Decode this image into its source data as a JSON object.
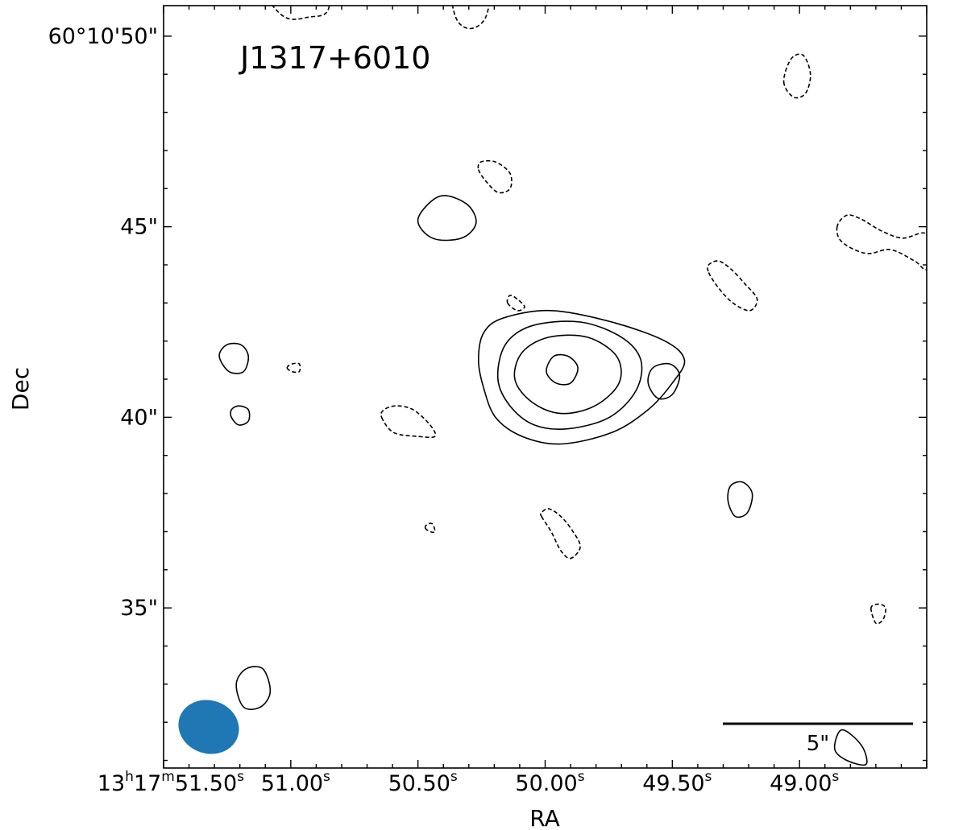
{
  "chart_data": {
    "type": "contour",
    "title": "J1317+6010",
    "xlabel": "RA",
    "ylabel": "Dec",
    "x_ticks": [
      {
        "h": "13",
        "m": "17",
        "s": "51.50",
        "full": true
      },
      {
        "s": "51.00"
      },
      {
        "s": "50.50"
      },
      {
        "s": "50.00"
      },
      {
        "s": "49.50"
      },
      {
        "s": "49.00"
      }
    ],
    "y_ticks": [
      {
        "value": "60°10'50\""
      },
      {
        "value": "45\""
      },
      {
        "value": "40\""
      },
      {
        "value": "35\""
      }
    ],
    "scale_bar_label": "5\"",
    "beam_color": "#1f77b4",
    "contour_color": "#000000",
    "contours": [
      {
        "style": "solid",
        "points": [
          [
            13.2,
            40.8
          ],
          [
            13.7,
            40.0
          ],
          [
            14.8,
            39.5
          ],
          [
            16.4,
            39.3
          ],
          [
            18.5,
            39.6
          ],
          [
            20.0,
            40.2
          ],
          [
            21.0,
            40.9
          ],
          [
            21.5,
            41.5
          ],
          [
            20.7,
            42.0
          ],
          [
            18.5,
            42.5
          ],
          [
            16.0,
            42.8
          ],
          [
            14.0,
            42.6
          ],
          [
            13.2,
            42.2
          ],
          [
            13.0,
            41.5
          ]
        ]
      },
      {
        "style": "solid",
        "points": [
          [
            13.8,
            41.0
          ],
          [
            14.3,
            40.3
          ],
          [
            15.3,
            39.8
          ],
          [
            16.7,
            39.7
          ],
          [
            18.4,
            40.0
          ],
          [
            19.5,
            40.7
          ],
          [
            19.7,
            41.5
          ],
          [
            18.9,
            42.1
          ],
          [
            17.2,
            42.5
          ],
          [
            15.2,
            42.4
          ],
          [
            14.1,
            41.9
          ]
        ]
      },
      {
        "style": "solid",
        "points": [
          [
            14.5,
            41.0
          ],
          [
            15.2,
            40.4
          ],
          [
            16.4,
            40.1
          ],
          [
            17.8,
            40.3
          ],
          [
            18.8,
            40.9
          ],
          [
            18.7,
            41.6
          ],
          [
            17.5,
            42.1
          ],
          [
            15.9,
            42.1
          ],
          [
            14.8,
            41.7
          ]
        ]
      },
      {
        "style": "solid",
        "points": [
          [
            15.8,
            41.2
          ],
          [
            16.2,
            40.9
          ],
          [
            16.8,
            40.9
          ],
          [
            17.1,
            41.3
          ],
          [
            16.7,
            41.6
          ],
          [
            16.1,
            41.6
          ]
        ]
      },
      {
        "style": "solid",
        "points": [
          [
            10.5,
            45.2
          ],
          [
            11.1,
            44.7
          ],
          [
            12.3,
            44.7
          ],
          [
            12.9,
            45.1
          ],
          [
            12.5,
            45.6
          ],
          [
            11.4,
            45.8
          ]
        ]
      },
      {
        "style": "solid",
        "points": [
          [
            2.3,
            41.6
          ],
          [
            2.7,
            41.2
          ],
          [
            3.3,
            41.2
          ],
          [
            3.5,
            41.6
          ],
          [
            3.2,
            41.9
          ],
          [
            2.6,
            41.9
          ]
        ]
      },
      {
        "style": "solid",
        "points": [
          [
            2.8,
            40.0
          ],
          [
            3.1,
            39.8
          ],
          [
            3.5,
            39.9
          ],
          [
            3.5,
            40.2
          ],
          [
            3.1,
            40.3
          ],
          [
            2.8,
            40.2
          ]
        ]
      },
      {
        "style": "solid",
        "points": [
          [
            20.0,
            40.9
          ],
          [
            20.4,
            40.5
          ],
          [
            21.0,
            40.6
          ],
          [
            21.3,
            41.1
          ],
          [
            20.9,
            41.4
          ],
          [
            20.2,
            41.3
          ]
        ]
      },
      {
        "style": "solid",
        "points": [
          [
            23.3,
            37.8
          ],
          [
            23.6,
            37.4
          ],
          [
            24.1,
            37.5
          ],
          [
            24.3,
            38.0
          ],
          [
            23.9,
            38.3
          ],
          [
            23.4,
            38.2
          ]
        ]
      },
      {
        "style": "solid",
        "points": [
          [
            3.0,
            33.0
          ],
          [
            3.3,
            32.4
          ],
          [
            4.0,
            32.4
          ],
          [
            4.4,
            32.8
          ],
          [
            4.1,
            33.4
          ],
          [
            3.4,
            33.4
          ]
        ]
      },
      {
        "style": "solid",
        "points": [
          [
            28.0,
            31.8
          ],
          [
            28.8,
            31.4
          ],
          [
            29.0,
            30.9
          ],
          [
            28.2,
            31.0
          ],
          [
            27.7,
            31.3
          ]
        ]
      },
      {
        "style": "dashed",
        "points": [
          [
            3.0,
            52.0
          ],
          [
            4.0,
            51.2
          ],
          [
            5.0,
            50.5
          ],
          [
            6.0,
            50.5
          ],
          [
            6.8,
            50.7
          ],
          [
            6.8,
            51.8
          ],
          [
            6.3,
            52.2
          ],
          [
            4.8,
            52.0
          ]
        ]
      },
      {
        "style": "dashed",
        "points": [
          [
            11.8,
            52.0
          ],
          [
            12.0,
            50.6
          ],
          [
            12.6,
            50.2
          ],
          [
            13.3,
            50.5
          ],
          [
            13.5,
            51.5
          ],
          [
            13.0,
            52.0
          ]
        ]
      },
      {
        "style": "dashed",
        "points": [
          [
            25.6,
            48.8
          ],
          [
            26.0,
            48.4
          ],
          [
            26.5,
            48.5
          ],
          [
            26.7,
            49.0
          ],
          [
            26.4,
            49.5
          ],
          [
            25.9,
            49.4
          ]
        ]
      },
      {
        "style": "dashed",
        "points": [
          [
            13.0,
            46.5
          ],
          [
            13.3,
            46.2
          ],
          [
            13.8,
            45.9
          ],
          [
            14.3,
            46.0
          ],
          [
            14.3,
            46.4
          ],
          [
            13.7,
            46.7
          ],
          [
            13.1,
            46.7
          ]
        ]
      },
      {
        "style": "dashed",
        "points": [
          [
            27.8,
            45.0
          ],
          [
            28.0,
            44.6
          ],
          [
            29.0,
            44.3
          ],
          [
            30.0,
            44.4
          ],
          [
            31.0,
            44.1
          ],
          [
            31.5,
            43.9
          ],
          [
            31.5,
            44.8
          ],
          [
            30.5,
            44.7
          ],
          [
            29.6,
            44.9
          ],
          [
            28.8,
            45.2
          ],
          [
            28.2,
            45.3
          ]
        ]
      },
      {
        "style": "dashed",
        "points": [
          [
            22.5,
            43.8
          ],
          [
            22.9,
            43.4
          ],
          [
            23.5,
            43.0
          ],
          [
            24.2,
            42.8
          ],
          [
            24.5,
            43.1
          ],
          [
            24.0,
            43.5
          ],
          [
            23.4,
            43.9
          ],
          [
            22.9,
            44.1
          ],
          [
            22.5,
            44.0
          ]
        ]
      },
      {
        "style": "dashed",
        "points": [
          [
            14.2,
            43.0
          ],
          [
            14.6,
            42.8
          ],
          [
            14.9,
            42.9
          ],
          [
            14.6,
            43.1
          ],
          [
            14.3,
            43.2
          ]
        ]
      },
      {
        "style": "dashed",
        "points": [
          [
            9.0,
            40.0
          ],
          [
            9.5,
            39.6
          ],
          [
            10.5,
            39.5
          ],
          [
            11.2,
            39.5
          ],
          [
            11.0,
            39.8
          ],
          [
            10.3,
            40.2
          ],
          [
            9.6,
            40.3
          ],
          [
            9.1,
            40.2
          ]
        ]
      },
      {
        "style": "dashed",
        "points": [
          [
            5.1,
            41.3
          ],
          [
            5.3,
            41.2
          ],
          [
            5.6,
            41.2
          ],
          [
            5.6,
            41.4
          ],
          [
            5.3,
            41.4
          ]
        ]
      },
      {
        "style": "dashed",
        "points": [
          [
            15.6,
            37.4
          ],
          [
            16.0,
            37.0
          ],
          [
            16.4,
            36.5
          ],
          [
            16.8,
            36.3
          ],
          [
            17.2,
            36.6
          ],
          [
            16.9,
            37.0
          ],
          [
            16.4,
            37.4
          ],
          [
            15.9,
            37.6
          ],
          [
            15.6,
            37.5
          ]
        ]
      },
      {
        "style": "dashed",
        "points": [
          [
            10.8,
            37.1
          ],
          [
            11.0,
            37.0
          ],
          [
            11.2,
            37.0
          ],
          [
            11.1,
            37.2
          ],
          [
            10.9,
            37.2
          ]
        ]
      },
      {
        "style": "dashed",
        "points": [
          [
            29.2,
            35.0
          ],
          [
            29.4,
            34.6
          ],
          [
            29.7,
            34.7
          ],
          [
            29.8,
            35.0
          ],
          [
            29.5,
            35.1
          ]
        ]
      }
    ]
  }
}
